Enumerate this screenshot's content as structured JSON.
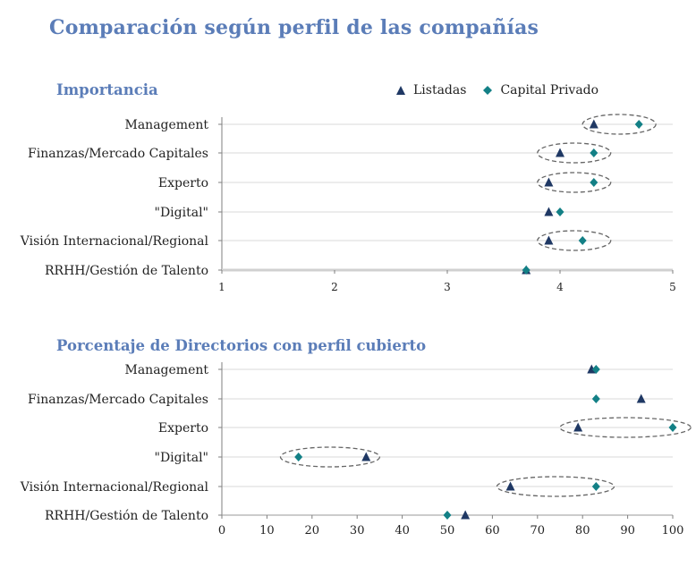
{
  "page": {
    "title": "Comparación según perfil de las compañías"
  },
  "legend": {
    "items": [
      {
        "label": "Listadas",
        "marker": "triangle",
        "color": "#1f3864"
      },
      {
        "label": "Capital Privado",
        "marker": "diamond",
        "color": "#138086"
      }
    ]
  },
  "chart_data": [
    {
      "type": "scatter",
      "title": "Importancia",
      "categories": [
        "Management",
        "Finanzas/Mercado Capitales",
        "Experto",
        "\"Digital\"",
        "Visión Internacional/Regional",
        "RRHH/Gestión de Talento"
      ],
      "series": [
        {
          "name": "Listadas",
          "marker": "triangle",
          "color": "#1f3864",
          "values": [
            4.3,
            4.0,
            3.9,
            3.9,
            3.9,
            3.7
          ]
        },
        {
          "name": "Capital Privado",
          "marker": "diamond",
          "color": "#138086",
          "values": [
            4.7,
            4.3,
            4.3,
            4.0,
            4.2,
            3.7
          ]
        }
      ],
      "xlim": [
        1,
        5
      ],
      "xticks": [
        "1",
        "2",
        "3",
        "4",
        "5"
      ],
      "grid": true,
      "legend_position": "top-right",
      "highlight_ellipses": [
        {
          "category": "Management",
          "from": 4.2,
          "to": 4.85
        },
        {
          "category": "Finanzas/Mercado Capitales",
          "from": 3.8,
          "to": 4.45
        },
        {
          "category": "Experto",
          "from": 3.8,
          "to": 4.45
        },
        {
          "category": "Visión Internacional/Regional",
          "from": 3.8,
          "to": 4.45
        }
      ]
    },
    {
      "type": "scatter",
      "title": "Porcentaje de Directorios con perfil cubierto",
      "categories": [
        "Management",
        "Finanzas/Mercado Capitales",
        "Experto",
        "\"Digital\"",
        "Visión Internacional/Regional",
        "RRHH/Gestión de Talento"
      ],
      "series": [
        {
          "name": "Listadas",
          "marker": "triangle",
          "color": "#1f3864",
          "values": [
            82,
            93,
            79,
            32,
            64,
            54
          ]
        },
        {
          "name": "Capital Privado",
          "marker": "diamond",
          "color": "#138086",
          "values": [
            83,
            83,
            100,
            17,
            83,
            50
          ]
        }
      ],
      "xlim": [
        0,
        100
      ],
      "xticks": [
        "0",
        "10",
        "20",
        "30",
        "40",
        "50",
        "60",
        "70",
        "80",
        "90",
        "100"
      ],
      "grid": true,
      "highlight_ellipses": [
        {
          "category": "Experto",
          "from": 75,
          "to": 104
        },
        {
          "category": "\"Digital\"",
          "from": 13,
          "to": 35
        },
        {
          "category": "Visión Internacional/Regional",
          "from": 61,
          "to": 87
        }
      ]
    }
  ]
}
